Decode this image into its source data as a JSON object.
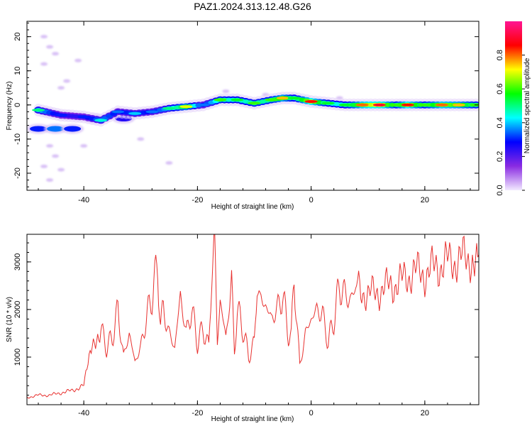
{
  "title": "PAZ1.2024.313.12.48.G26",
  "chart_data": [
    {
      "type": "heatmap",
      "title": "PAZ1.2024.313.12.48.G26",
      "xlabel": "Height of straight line (km)",
      "ylabel": "Frequency (Hz)",
      "xlim": [
        -50,
        29.5
      ],
      "ylim": [
        -25,
        24.5
      ],
      "x_ticks": [
        -40,
        -20,
        0,
        20
      ],
      "y_ticks": [
        -20,
        -10,
        0,
        10,
        20
      ],
      "colorbar": {
        "label": "Normalized spectral amplitude",
        "range": [
          0,
          1
        ],
        "ticks": [
          "0.0",
          "0.2",
          "0.4",
          "0.6",
          "0.8"
        ],
        "colors": [
          "#f2eaff",
          "#8a2be2",
          "#0000ff",
          "#00ffff",
          "#00ff00",
          "#ffff00",
          "#ff0000",
          "#ff1493"
        ]
      },
      "ridge": [
        {
          "x": -48,
          "y": -1.5,
          "a": 0.5
        },
        {
          "x": -44,
          "y": -3,
          "a": 0.3
        },
        {
          "x": -40,
          "y": -3.5,
          "a": 0.3
        },
        {
          "x": -37,
          "y": -4.5,
          "a": 0.45
        },
        {
          "x": -34,
          "y": -2,
          "a": 0.35
        },
        {
          "x": -31,
          "y": -2.5,
          "a": 0.4
        },
        {
          "x": -28,
          "y": -2,
          "a": 0.35
        },
        {
          "x": -25,
          "y": -1,
          "a": 0.5
        },
        {
          "x": -22,
          "y": -0.5,
          "a": 0.7
        },
        {
          "x": -19,
          "y": 0,
          "a": 0.35
        },
        {
          "x": -16,
          "y": 1.5,
          "a": 0.6
        },
        {
          "x": -13,
          "y": 1.5,
          "a": 0.55
        },
        {
          "x": -10,
          "y": 0.5,
          "a": 0.6
        },
        {
          "x": -7,
          "y": 1.5,
          "a": 0.6
        },
        {
          "x": -5,
          "y": 2,
          "a": 0.75
        },
        {
          "x": -3,
          "y": 2,
          "a": 0.55
        },
        {
          "x": 0,
          "y": 1,
          "a": 0.85
        },
        {
          "x": 3,
          "y": 0.5,
          "a": 0.55
        },
        {
          "x": 6,
          "y": 0,
          "a": 0.55
        },
        {
          "x": 9,
          "y": 0,
          "a": 0.8
        },
        {
          "x": 12,
          "y": 0,
          "a": 0.9
        },
        {
          "x": 15,
          "y": 0,
          "a": 0.6
        },
        {
          "x": 17,
          "y": 0,
          "a": 0.85
        },
        {
          "x": 20,
          "y": 0,
          "a": 0.6
        },
        {
          "x": 23,
          "y": 0,
          "a": 0.8
        },
        {
          "x": 26,
          "y": 0,
          "a": 0.75
        },
        {
          "x": 29,
          "y": 0,
          "a": 0.6
        }
      ],
      "secondary_band": [
        {
          "x": -48,
          "y": -7,
          "a": 0.3
        },
        {
          "x": -45,
          "y": -7,
          "a": 0.35
        },
        {
          "x": -42,
          "y": -7,
          "a": 0.3
        },
        {
          "x": -38,
          "y": -4,
          "a": 0.25
        },
        {
          "x": -33,
          "y": -4,
          "a": 0.25
        }
      ],
      "scattered_noise": [
        {
          "x": -47,
          "y": 20
        },
        {
          "x": -46,
          "y": 17
        },
        {
          "x": -45,
          "y": 15
        },
        {
          "x": -47,
          "y": 12
        },
        {
          "x": -44,
          "y": 5
        },
        {
          "x": -43,
          "y": 7
        },
        {
          "x": -41,
          "y": 13
        },
        {
          "x": -46,
          "y": -12
        },
        {
          "x": -45,
          "y": -15
        },
        {
          "x": -47,
          "y": -18
        },
        {
          "x": -44,
          "y": -19
        },
        {
          "x": -46,
          "y": -22
        },
        {
          "x": -40,
          "y": -12
        },
        {
          "x": -25,
          "y": -17
        },
        {
          "x": -30,
          "y": -10
        },
        {
          "x": -15,
          "y": 4
        },
        {
          "x": -8,
          "y": 3
        },
        {
          "x": 5,
          "y": 2
        }
      ]
    },
    {
      "type": "line",
      "xlabel": "Height of straight line (km)",
      "ylabel": "SNR (10 * v/v)",
      "xlim": [
        -50,
        29.5
      ],
      "ylim": [
        0,
        3580
      ],
      "x_ticks": [
        -40,
        -20,
        0,
        20
      ],
      "y_ticks": [
        1000,
        2000,
        3000
      ],
      "series": [
        {
          "color": "#e8312f",
          "x": [
            -50,
            -48,
            -46,
            -44,
            -42,
            -40,
            -38.5,
            -37,
            -36,
            -35,
            -34,
            -33,
            -32,
            -31,
            -30,
            -29,
            -28,
            -27,
            -26.5,
            -26,
            -25,
            -24,
            -23,
            -22,
            -21,
            -20,
            -19,
            -18,
            -17.5,
            -17,
            -16.5,
            -16,
            -15,
            -14,
            -13.5,
            -13,
            -12,
            -11,
            -10,
            -9.5,
            -9,
            -8,
            -7,
            -6,
            -5,
            -4,
            -3.5,
            -3,
            -2,
            -1,
            0,
            1,
            2,
            3,
            4,
            5,
            6,
            7,
            8,
            10,
            12,
            14,
            16,
            18,
            20,
            22,
            24,
            26,
            28,
            29.5
          ],
          "y": [
            150,
            200,
            200,
            250,
            300,
            400,
            1300,
            1600,
            1200,
            1400,
            2000,
            1000,
            1500,
            900,
            1200,
            1800,
            2300,
            2900,
            1700,
            2000,
            1500,
            1200,
            2300,
            1500,
            2000,
            1300,
            1600,
            1200,
            2700,
            3550,
            1300,
            2200,
            1400,
            2600,
            1100,
            2000,
            1600,
            1000,
            1300,
            2550,
            2200,
            2100,
            1800,
            2000,
            2300,
            1500,
            1400,
            2700,
            800,
            1500,
            1800,
            2000,
            1900,
            1300,
            1800,
            2500,
            2300,
            2200,
            2500,
            2300,
            2400,
            2500,
            2600,
            2800,
            2750,
            2900,
            3000,
            3050,
            3100,
            3150
          ]
        }
      ]
    }
  ]
}
